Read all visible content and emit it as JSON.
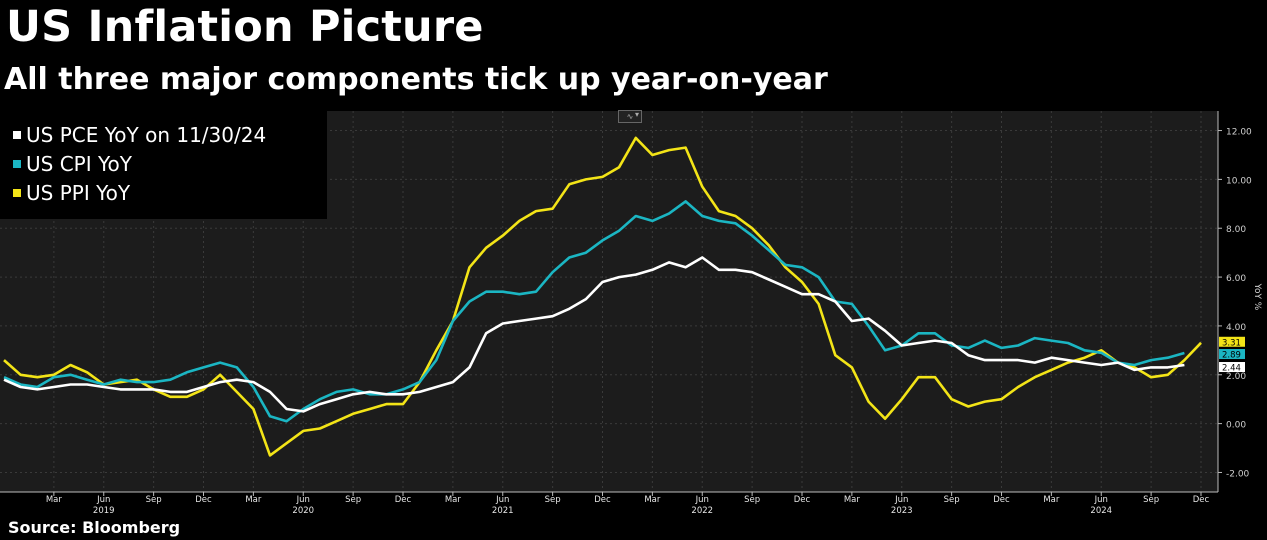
{
  "title": "US Inflation Picture",
  "subtitle": "All three major components tick up year-on-year",
  "source": "Source: Bloomberg",
  "colors": {
    "pce": "#ffffff",
    "cpi": "#1bb6c3",
    "ppi": "#f3e417",
    "background": "#000000",
    "plot_bg": "#1c1c1c",
    "grid": "#3a3a3a"
  },
  "icons": {
    "chart_toggle": "line-chart-icon"
  },
  "chart_data": {
    "type": "line",
    "title": "US Inflation Picture",
    "subtitle": "All three major components tick up year-on-year",
    "ylabel": "YoY %",
    "ylim": [
      -2.8,
      12.8
    ],
    "yticks": [
      "12.00",
      "10.00",
      "8.00",
      "6.00",
      "4.00",
      "2.00",
      "0.00",
      "-2.00"
    ],
    "ytick_values": [
      12,
      10,
      8,
      6,
      4,
      2,
      0,
      -2
    ],
    "xlim": [
      "2018-12",
      "2024-12"
    ],
    "x_month_ticks": [
      "Mar",
      "Jun",
      "Sep",
      "Dec",
      "Mar",
      "Jun",
      "Sep",
      "Dec",
      "Mar",
      "Jun",
      "Sep",
      "Dec",
      "Mar",
      "Jun",
      "Sep",
      "Dec",
      "Mar",
      "Jun",
      "Sep",
      "Dec",
      "Mar",
      "Jun",
      "Sep",
      "Dec"
    ],
    "x_month_tick_dates": [
      "2019-03",
      "2019-06",
      "2019-09",
      "2019-12",
      "2020-03",
      "2020-06",
      "2020-09",
      "2020-12",
      "2021-03",
      "2021-06",
      "2021-09",
      "2021-12",
      "2022-03",
      "2022-06",
      "2022-09",
      "2022-12",
      "2023-03",
      "2023-06",
      "2023-09",
      "2023-12",
      "2024-03",
      "2024-06",
      "2024-09",
      "2024-12"
    ],
    "x_year_labels": [
      "2019",
      "2020",
      "2021",
      "2022",
      "2023",
      "2024"
    ],
    "x_year_label_dates": [
      "2019-06",
      "2020-06",
      "2021-06",
      "2022-06",
      "2023-06",
      "2024-06"
    ],
    "grid": true,
    "legend_position": "top-left",
    "series": [
      {
        "name": "US PCE YoY on 11/30/24",
        "color": "#ffffff",
        "start": "2018-12",
        "last_value_label": "2.44",
        "values": [
          1.8,
          1.5,
          1.4,
          1.5,
          1.6,
          1.6,
          1.5,
          1.4,
          1.4,
          1.4,
          1.3,
          1.3,
          1.5,
          1.7,
          1.8,
          1.7,
          1.3,
          0.6,
          0.5,
          0.8,
          1.0,
          1.2,
          1.3,
          1.2,
          1.2,
          1.3,
          1.5,
          1.7,
          2.3,
          3.7,
          4.1,
          4.2,
          4.3,
          4.4,
          4.7,
          5.1,
          5.8,
          6.0,
          6.1,
          6.3,
          6.6,
          6.4,
          6.8,
          6.3,
          6.3,
          6.2,
          5.9,
          5.6,
          5.3,
          5.3,
          5.0,
          4.2,
          4.3,
          3.8,
          3.2,
          3.3,
          3.4,
          3.3,
          2.8,
          2.6,
          2.6,
          2.6,
          2.5,
          2.7,
          2.6,
          2.5,
          2.4,
          2.5,
          2.2,
          2.3,
          2.3,
          2.4
        ]
      },
      {
        "name": "US CPI YoY",
        "color": "#1bb6c3",
        "start": "2018-12",
        "last_value_label": "2.89",
        "values": [
          1.9,
          1.6,
          1.5,
          1.9,
          2.0,
          1.8,
          1.6,
          1.8,
          1.7,
          1.7,
          1.8,
          2.1,
          2.3,
          2.5,
          2.3,
          1.5,
          0.3,
          0.1,
          0.6,
          1.0,
          1.3,
          1.4,
          1.2,
          1.2,
          1.4,
          1.7,
          2.6,
          4.2,
          5.0,
          5.4,
          5.4,
          5.3,
          5.4,
          6.2,
          6.8,
          7.0,
          7.5,
          7.9,
          8.5,
          8.3,
          8.6,
          9.1,
          8.5,
          8.3,
          8.2,
          7.7,
          7.1,
          6.5,
          6.4,
          6.0,
          5.0,
          4.9,
          4.0,
          3.0,
          3.2,
          3.7,
          3.7,
          3.2,
          3.1,
          3.4,
          3.1,
          3.2,
          3.5,
          3.4,
          3.3,
          3.0,
          2.9,
          2.5,
          2.4,
          2.6,
          2.7,
          2.89
        ]
      },
      {
        "name": "US PPI YoY",
        "color": "#f3e417",
        "start": "2018-12",
        "last_value_label": "3.31",
        "values": [
          2.6,
          2.0,
          1.9,
          2.0,
          2.4,
          2.1,
          1.6,
          1.7,
          1.8,
          1.4,
          1.1,
          1.1,
          1.4,
          2.0,
          1.3,
          0.6,
          -1.3,
          -0.8,
          -0.3,
          -0.2,
          0.1,
          0.4,
          0.6,
          0.8,
          0.8,
          1.7,
          3.0,
          4.2,
          6.4,
          7.2,
          7.7,
          8.3,
          8.7,
          8.8,
          9.8,
          10.0,
          10.1,
          10.5,
          11.7,
          11.0,
          11.2,
          11.3,
          9.7,
          8.7,
          8.5,
          8.0,
          7.3,
          6.4,
          5.8,
          4.9,
          2.8,
          2.3,
          0.9,
          0.2,
          1.0,
          1.9,
          1.9,
          1.0,
          0.7,
          0.9,
          1.0,
          1.5,
          1.9,
          2.2,
          2.5,
          2.7,
          3.0,
          2.5,
          2.3,
          1.9,
          2.0,
          2.6,
          3.31
        ]
      }
    ]
  },
  "legend": [
    {
      "label": "US PCE YoY on 11/30/24",
      "color": "#ffffff"
    },
    {
      "label": "US CPI YoY",
      "color": "#1bb6c3"
    },
    {
      "label": "US PPI YoY",
      "color": "#f3e417"
    }
  ]
}
